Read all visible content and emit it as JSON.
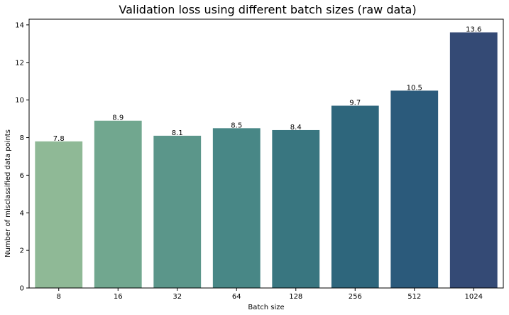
{
  "chart_data": {
    "type": "bar",
    "title": "Validation loss using different batch sizes (raw data)",
    "xlabel": "Batch size",
    "ylabel": "Number of misclassified data points",
    "categories": [
      "8",
      "16",
      "32",
      "64",
      "128",
      "256",
      "512",
      "1024"
    ],
    "values": [
      7.8,
      8.9,
      8.1,
      8.5,
      8.4,
      9.7,
      10.5,
      13.6
    ],
    "data_labels": [
      "7.8",
      "8.9",
      "8.1",
      "8.5",
      "8.4",
      "9.7",
      "10.5",
      "13.6"
    ],
    "ylim": [
      0,
      14.3
    ],
    "yticks": [
      0,
      2,
      4,
      6,
      8,
      10,
      12,
      14
    ],
    "grid": false,
    "legend": "none",
    "colors": [
      "#8fb996",
      "#71a78f",
      "#5b968a",
      "#488786",
      "#397680",
      "#2e667c",
      "#2b5a7b",
      "#344a75"
    ]
  }
}
